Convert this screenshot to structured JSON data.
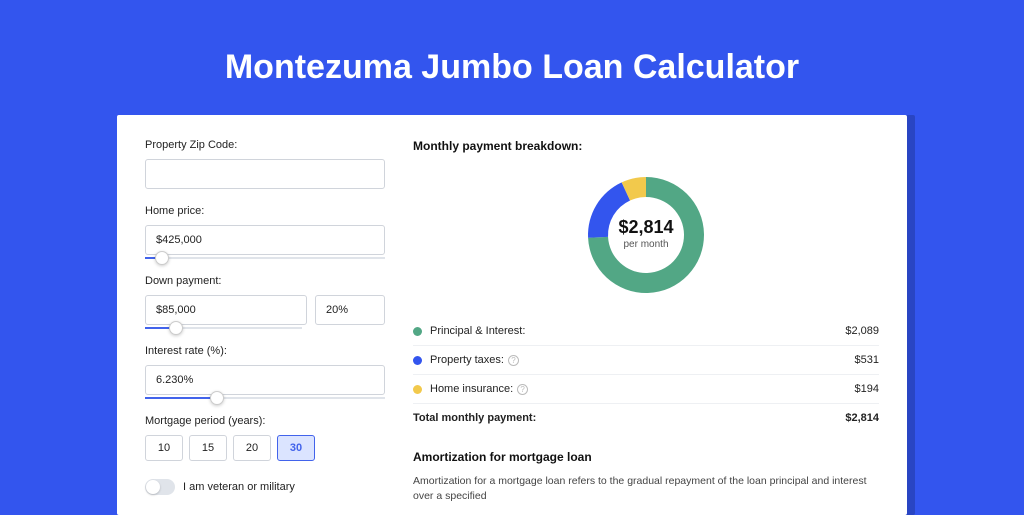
{
  "page": {
    "title": "Montezuma Jumbo Loan Calculator",
    "background_color": "#3355ee",
    "card_background": "#ffffff"
  },
  "inputs": {
    "zip": {
      "label": "Property Zip Code:",
      "value": ""
    },
    "home_price": {
      "label": "Home price:",
      "value": "$425,000",
      "slider_pct": 7
    },
    "down_payment": {
      "label": "Down payment:",
      "amount": "$85,000",
      "percent": "20%",
      "slider_pct": 20
    },
    "interest_rate": {
      "label": "Interest rate (%):",
      "value": "6.230%",
      "slider_pct": 30
    },
    "mortgage_period": {
      "label": "Mortgage period (years):",
      "options": [
        "10",
        "15",
        "20",
        "30"
      ],
      "selected": "30"
    },
    "veteran": {
      "label": "I am veteran or military",
      "checked": false
    }
  },
  "breakdown": {
    "heading": "Monthly payment breakdown:",
    "center_amount": "$2,814",
    "center_sub": "per month",
    "donut": {
      "slices": [
        {
          "key": "principal_interest",
          "value": 2089,
          "color": "#52a785"
        },
        {
          "key": "property_taxes",
          "value": 531,
          "color": "#3355ee"
        },
        {
          "key": "home_insurance",
          "value": 194,
          "color": "#f2c94c"
        }
      ],
      "thickness": 20,
      "radius": 58
    },
    "rows": [
      {
        "label": "Principal & Interest:",
        "value": "$2,089",
        "color": "#52a785",
        "info": false
      },
      {
        "label": "Property taxes:",
        "value": "$531",
        "color": "#3355ee",
        "info": true
      },
      {
        "label": "Home insurance:",
        "value": "$194",
        "color": "#f2c94c",
        "info": true
      }
    ],
    "total": {
      "label": "Total monthly payment:",
      "value": "$2,814"
    }
  },
  "amortization": {
    "heading": "Amortization for mortgage loan",
    "text": "Amortization for a mortgage loan refers to the gradual repayment of the loan principal and interest over a specified"
  }
}
